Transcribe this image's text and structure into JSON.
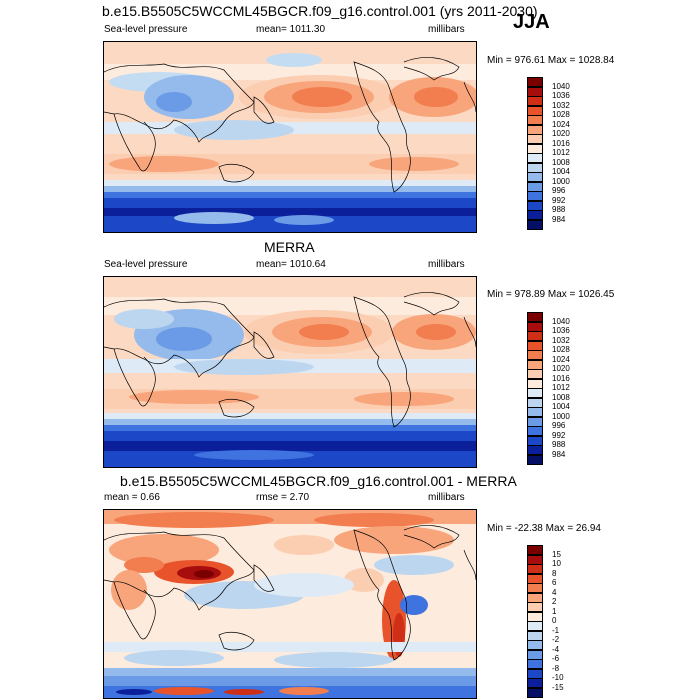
{
  "figure": {
    "season": "JJA"
  },
  "chart_data": [
    {
      "type": "heatmap",
      "title": "b.e15.B5505C5WCCML45BGCR.f09_g16.control.001 (yrs 2011-2030)",
      "left_label": "Sea-level pressure",
      "center_label": "mean= 1011.30",
      "units": "millibars",
      "minmax": "Min = 976.61 Max = 1028.84",
      "colorbar": {
        "labels": [
          "1040",
          "1036",
          "1032",
          "1028",
          "1024",
          "1020",
          "1016",
          "1012",
          "1008",
          "1004",
          "1000",
          "996",
          "992",
          "988",
          "984"
        ],
        "colors": [
          "#7a0000",
          "#a80d0d",
          "#cf2e17",
          "#e8532b",
          "#f27d4e",
          "#f8a57c",
          "#fbcdb1",
          "#fdebdd",
          "#deebf6",
          "#bcd6f0",
          "#95bbec",
          "#6b9ae6",
          "#3f73df",
          "#1c47c6",
          "#0c1f9a",
          "#050f66"
        ]
      }
    },
    {
      "type": "heatmap",
      "title": "MERRA",
      "left_label": "Sea-level pressure",
      "center_label": "mean= 1010.64",
      "units": "millibars",
      "minmax": "Min = 978.89 Max = 1026.45",
      "colorbar": {
        "labels": [
          "1040",
          "1036",
          "1032",
          "1028",
          "1024",
          "1020",
          "1016",
          "1012",
          "1008",
          "1004",
          "1000",
          "996",
          "992",
          "988",
          "984"
        ],
        "colors": [
          "#7a0000",
          "#a80d0d",
          "#cf2e17",
          "#e8532b",
          "#f27d4e",
          "#f8a57c",
          "#fbcdb1",
          "#fdebdd",
          "#deebf6",
          "#bcd6f0",
          "#95bbec",
          "#6b9ae6",
          "#3f73df",
          "#1c47c6",
          "#0c1f9a",
          "#050f66"
        ]
      }
    },
    {
      "type": "heatmap",
      "title": "b.e15.B5505C5WCCML45BGCR.f09_g16.control.001 - MERRA",
      "left_label": "mean =   0.66",
      "center_label": "rmse =   2.70",
      "units": "millibars",
      "minmax": "Min = -22.38 Max =  26.94",
      "colorbar": {
        "labels": [
          "15",
          "10",
          "8",
          "6",
          "4",
          "2",
          "1",
          "0",
          "-1",
          "-2",
          "-4",
          "-6",
          "-8",
          "-10",
          "-15"
        ],
        "colors": [
          "#7a0000",
          "#a80d0d",
          "#cf2e17",
          "#e8532b",
          "#f27d4e",
          "#f8a57c",
          "#fbcdb1",
          "#fdebdd",
          "#deebf6",
          "#bcd6f0",
          "#95bbec",
          "#6b9ae6",
          "#3f73df",
          "#1c47c6",
          "#0c1f9a",
          "#050f66"
        ]
      }
    }
  ]
}
